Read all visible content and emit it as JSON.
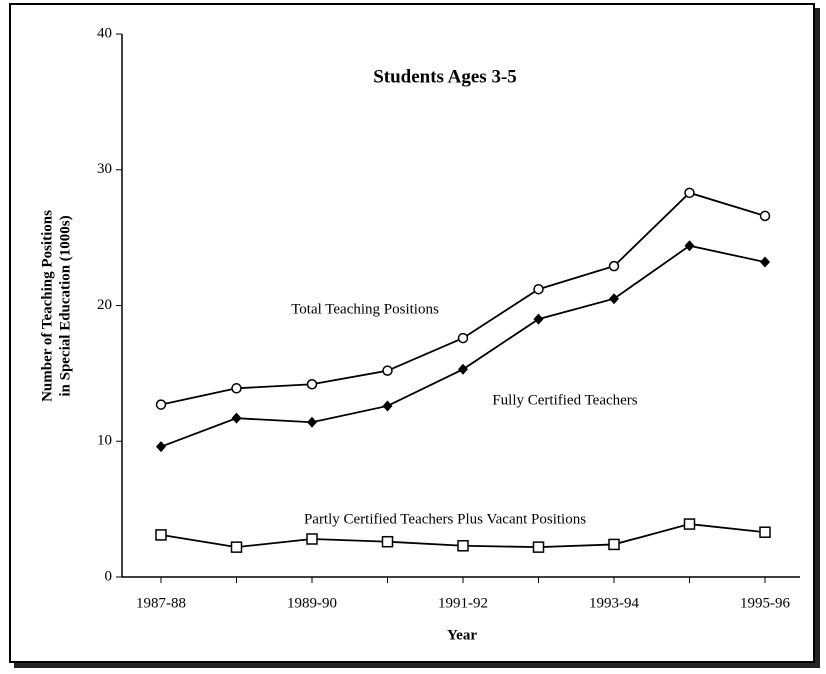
{
  "chart_data": {
    "type": "line",
    "title": "Students Ages 3-5",
    "y_label": [
      "Number of Teaching Positions",
      "in Special Education (1000s)"
    ],
    "x_label": "Year",
    "categories": [
      "1987-88",
      null,
      "1989-90",
      null,
      "1991-92",
      null,
      "1993-94",
      null,
      "1995-96"
    ],
    "ylim": [
      0,
      40
    ],
    "yticks": [
      0,
      10,
      20,
      30,
      40
    ],
    "grid": false,
    "series": [
      {
        "name": "Total Teaching Positions",
        "color": "#000000",
        "marker": "circle",
        "values": [
          12.7,
          13.9,
          14.2,
          15.2,
          17.6,
          21.2,
          22.9,
          28.3,
          26.6
        ]
      },
      {
        "name": "Fully Certified Teachers",
        "color": "#000000",
        "marker": "diamond",
        "values": [
          9.6,
          11.7,
          11.4,
          12.6,
          15.3,
          19.0,
          20.5,
          24.4,
          23.2
        ]
      },
      {
        "name": "Partly Certified Teachers Plus Vacant Positions",
        "color": "#000000",
        "marker": "square",
        "values": [
          3.1,
          2.2,
          2.8,
          2.6,
          2.3,
          2.2,
          2.4,
          3.9,
          3.3
        ]
      }
    ]
  }
}
